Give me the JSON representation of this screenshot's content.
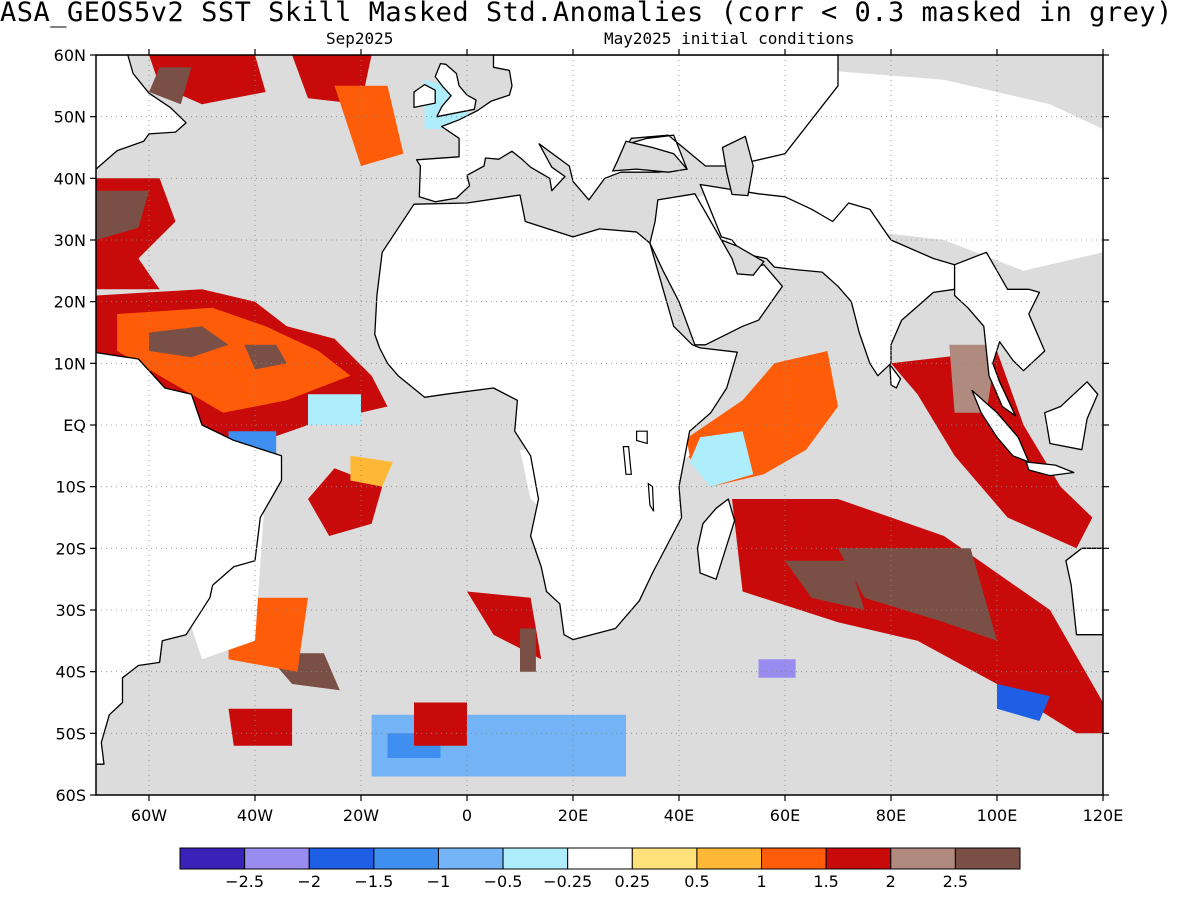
{
  "title": "ASA_GEOS5v2  SST Skill Masked Std.Anomalies (corr < 0.3 masked in grey)",
  "subtitle_left": "Sep2025",
  "subtitle_right": "May2025 initial conditions",
  "map": {
    "lon_range": [
      -70,
      120
    ],
    "lat_range": [
      -60,
      60
    ],
    "lat_ticks": [
      "60N",
      "50N",
      "40N",
      "30N",
      "20N",
      "10N",
      "EQ",
      "10S",
      "20S",
      "30S",
      "40S",
      "50S",
      "60S"
    ],
    "lon_ticks": [
      "60W",
      "40W",
      "20W",
      "0",
      "20E",
      "40E",
      "60E",
      "80E",
      "100E",
      "120E"
    ],
    "mask_color": "#dcdcdc",
    "land_fill": "#ffffff",
    "coast_color": "#000000"
  },
  "colorbar": {
    "colors": [
      "#3a22b8",
      "#9a8bf0",
      "#1f5fe6",
      "#3f8ff0",
      "#74b4f6",
      "#aeeefc",
      "#ffffff",
      "#ffe17a",
      "#ffb836",
      "#ff5c0a",
      "#c80a0a",
      "#b08a7e",
      "#7a5046"
    ],
    "labels": [
      "-2.5",
      "-2",
      "-1.5",
      "-1",
      "-0.5",
      "-0.25",
      "0.25",
      "0.5",
      "1",
      "1.5",
      "2",
      "2.5"
    ]
  }
}
